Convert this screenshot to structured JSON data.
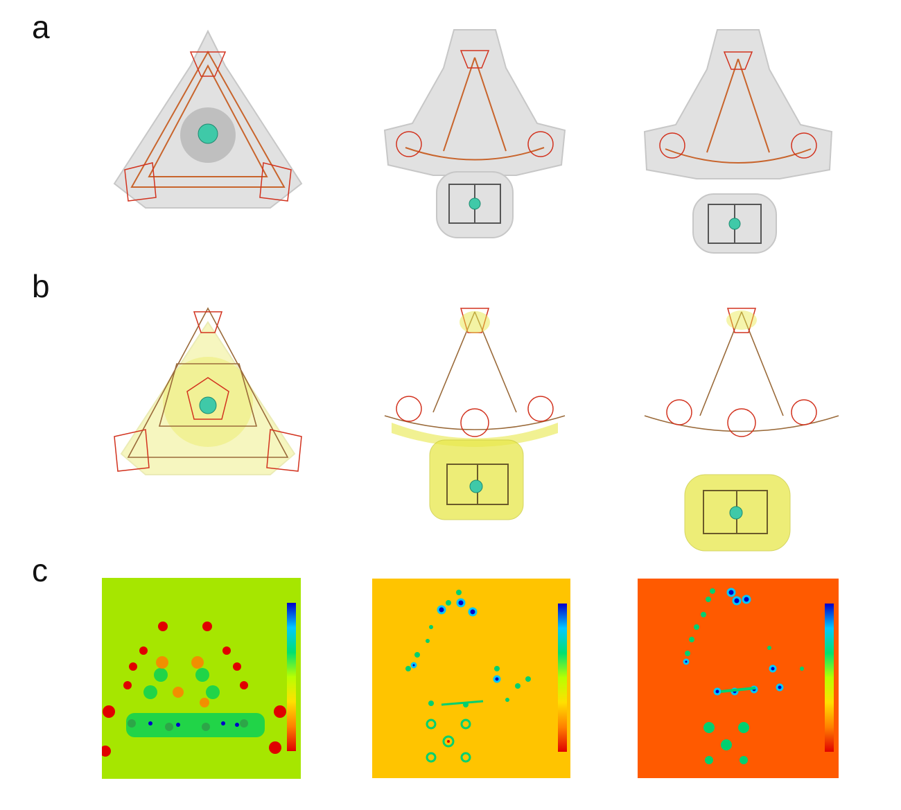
{
  "figure": {
    "panels": [
      {
        "letter": "a"
      },
      {
        "letter": "b"
      },
      {
        "letter": "c"
      }
    ]
  },
  "colors": {
    "surface_gray": "#bdbdbd",
    "bond_red": "#d2321e",
    "bond_brown": "#9a6a3a",
    "atom_teal": "#3fc9a8",
    "density_yellow": "#e8e84a",
    "map_left_bg": "#a6e600",
    "map_mid_bg": "#ffc400",
    "map_right_bg": "#ff5a00"
  },
  "colorbar_gradient": [
    "#0000c8",
    "#00c8ff",
    "#00e070",
    "#b8ff00",
    "#ffe000",
    "#ff8000",
    "#e00000"
  ]
}
